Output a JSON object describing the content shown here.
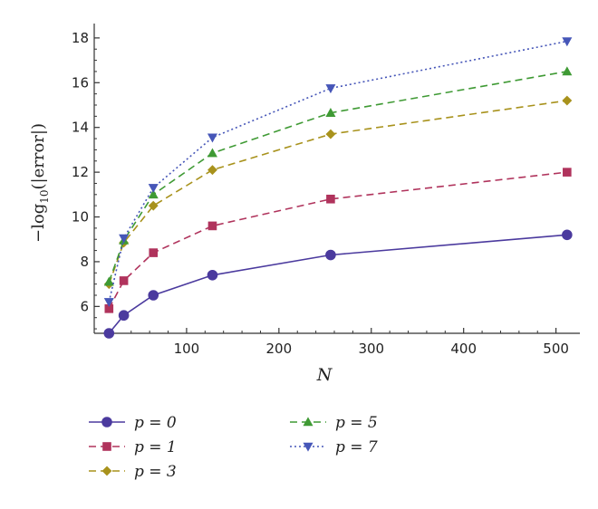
{
  "chart_data": {
    "type": "line",
    "title": "",
    "xlabel": "N",
    "ylabel_prefix": "−log",
    "ylabel_sub": "10",
    "ylabel_suffix": "(|error|)",
    "xlim": [
      0,
      520
    ],
    "ylim": [
      4.8,
      18.4
    ],
    "x_ticks": [
      100,
      200,
      300,
      400,
      500
    ],
    "y_ticks": [
      6,
      8,
      10,
      12,
      14,
      16,
      18
    ],
    "grid": false,
    "legend_position": "bottom",
    "x": [
      16,
      32,
      64,
      128,
      256,
      512
    ],
    "series": [
      {
        "name": "p = 0",
        "color": "#4b3a9e",
        "marker": "circle",
        "dash": "",
        "values": [
          4.8,
          5.6,
          6.5,
          7.4,
          8.3,
          9.2
        ]
      },
      {
        "name": "p = 1",
        "color": "#b0335c",
        "marker": "square",
        "dash": "8,5",
        "values": [
          5.9,
          7.15,
          8.4,
          9.6,
          10.8,
          12.0
        ]
      },
      {
        "name": "p = 3",
        "color": "#a8921c",
        "marker": "diamond",
        "dash": "8,5",
        "values": [
          7.0,
          8.85,
          10.5,
          12.1,
          13.7,
          15.2
        ]
      },
      {
        "name": "p = 5",
        "color": "#3f9a34",
        "marker": "triangle-up",
        "dash": "8,5",
        "values": [
          7.1,
          8.95,
          11.0,
          12.85,
          14.65,
          16.5
        ]
      },
      {
        "name": "p = 7",
        "color": "#4656b8",
        "marker": "triangle-down",
        "dash": "2,3",
        "values": [
          6.2,
          9.05,
          11.3,
          13.55,
          15.75,
          17.85
        ]
      }
    ]
  }
}
